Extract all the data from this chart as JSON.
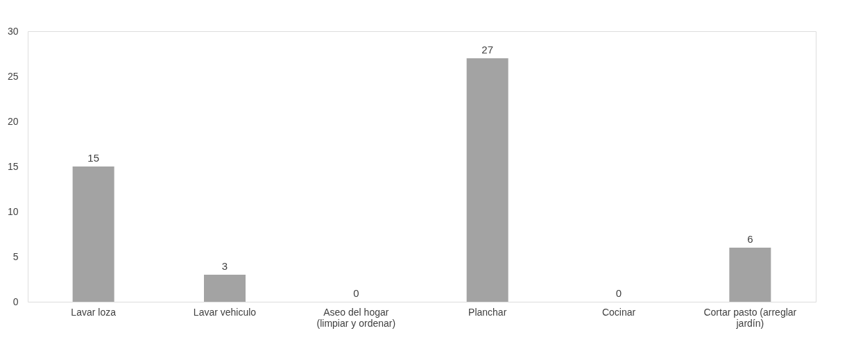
{
  "chart_data": {
    "type": "bar",
    "categories": [
      "Lavar loza",
      "Lavar vehiculo",
      "Aseo del hogar (limpiar y ordenar)",
      "Planchar",
      "Cocinar",
      "Cortar pasto (arreglar jardín)"
    ],
    "values": [
      15,
      3,
      0,
      27,
      0,
      6
    ],
    "color": "#a3a3a3",
    "ylim": [
      0,
      30
    ],
    "yticks": [
      0,
      5,
      10,
      15,
      20,
      25,
      30
    ],
    "grid": false,
    "data_labels": true
  }
}
